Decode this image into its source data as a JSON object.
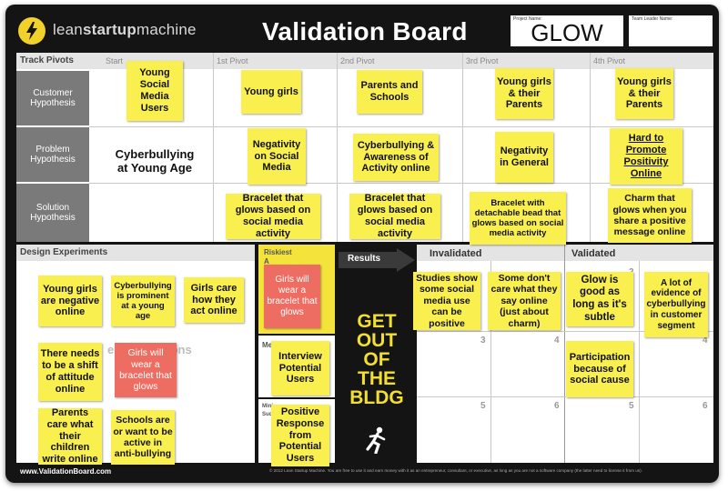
{
  "header": {
    "brand_prefix": "lean",
    "brand_bold": "startup",
    "brand_suffix": "machine",
    "title": "Validation Board",
    "project_name_label": "Project Name:",
    "project_name_value": "GLOW",
    "team_leader_label": "Team Leader Name:"
  },
  "track_pivots": {
    "label": "Track Pivots",
    "headers": [
      "Start",
      "1st Pivot",
      "2nd Pivot",
      "3rd Pivot",
      "4th Pivot"
    ],
    "rows": [
      "Customer Hypothesis",
      "Problem Hypothesis",
      "Solution Hypothesis"
    ]
  },
  "customer_notes": [
    "Young Social Media Users",
    "Young girls",
    "Parents and Schools",
    "Young girls & their Parents",
    "Young girls & their Parents"
  ],
  "problem_notes": [
    "Cyberbullying at Young Age",
    "Negativity on Social Media",
    "Cyberbullying & Awareness of Activity online",
    "Negativity in General",
    "Hard to Promote Positivity Online"
  ],
  "solution_notes": [
    "Bracelet that glows based on social media activity",
    "Bracelet that glows based on social media activity",
    "Bracelet with detachable bead that glows based on social media activity",
    "Charm that glows when you share a positive message online"
  ],
  "design": {
    "label": "Design Experiments",
    "ghost_text": "e Assumptions",
    "notes": [
      "Young girls are negative online",
      "Cyberbullying is prominent at a young age",
      "Girls care how they act online",
      "There needs to be a shift of attitude online",
      "Girls will wear a bracelet that glows",
      "Parents care what their children write online",
      "Schools are or want to be active in anti-bullying"
    ]
  },
  "riskiest": {
    "label": "Riskiest A",
    "note": "Girls will wear a bracelet that glows"
  },
  "method": {
    "label": "Me",
    "note": "Interview Potential Users"
  },
  "criterion": {
    "label": "Mini Suc Cri",
    "note": "Positive Response from Potential Users"
  },
  "results": {
    "label": "Results",
    "get_out": "GET OUT OF THE BLDG"
  },
  "invalidated": {
    "label": "Invalidated",
    "notes": [
      "Studies show some social media use can be positive",
      "Some don't care what they say online (just about charm)"
    ],
    "cell_numbers": [
      "3",
      "4",
      "5",
      "6"
    ]
  },
  "validated": {
    "label": "Validated",
    "notes": [
      "Glow is good as long as it's subtle",
      "A lot of evidence of cyberbullying in customer segment",
      "Participation because of social cause"
    ],
    "cell_numbers": [
      "2",
      "4",
      "5",
      "6"
    ]
  },
  "footer": {
    "url": "www.ValidationBoard.com",
    "copyright": "© 2012 Lean Startup Machine. You are free to use it and earn money with it as an entrepreneur, consultant, or executive, as long as you are not a software company (the latter need to license it from us)."
  },
  "colors": {
    "sticky_yellow": "#f9ef4e",
    "sticky_pink": "#ee6d62",
    "board_black": "#141414",
    "accent_yellow": "#f3df30"
  }
}
